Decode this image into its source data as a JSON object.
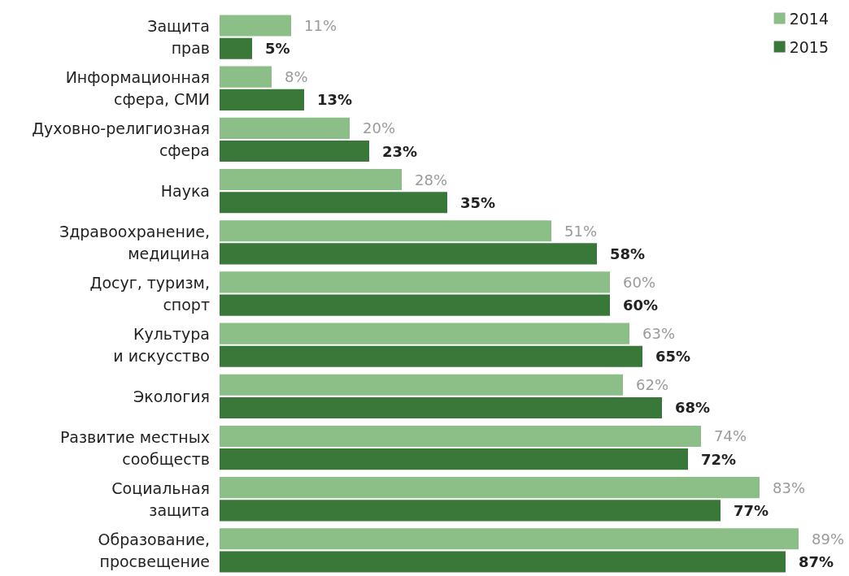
{
  "chart_data": {
    "type": "bar",
    "orientation": "horizontal",
    "legend": "top right",
    "categories": [
      "Защита\nправ",
      "Информационная\nсфера, СМИ",
      "Духовно-религиозная\nсфера",
      "Наука",
      "Здравоохранение,\nмедицина",
      "Досуг, туризм,\nспорт",
      "Культура\nи искусство",
      "Экология",
      "Развитие местных\nсообществ",
      "Социальная\nзащита",
      "Образование,\nпросвещение"
    ],
    "series": [
      {
        "name": "2014",
        "color": "#8cbf88",
        "values": [
          11,
          8,
          20,
          28,
          51,
          60,
          63,
          62,
          74,
          83,
          89
        ],
        "value_labels": [
          "11%",
          "8%",
          "20%",
          "28%",
          "51%",
          "60%",
          "63%",
          "62%",
          "74%",
          "83%",
          "89%"
        ]
      },
      {
        "name": "2015",
        "color": "#3a783a",
        "values": [
          5,
          13,
          23,
          35,
          58,
          60,
          65,
          68,
          72,
          77,
          87
        ],
        "value_labels": [
          "5%",
          "13%",
          "23%",
          "35%",
          "58%",
          "60%",
          "65%",
          "68%",
          "72%",
          "77%",
          "87%"
        ]
      }
    ]
  }
}
